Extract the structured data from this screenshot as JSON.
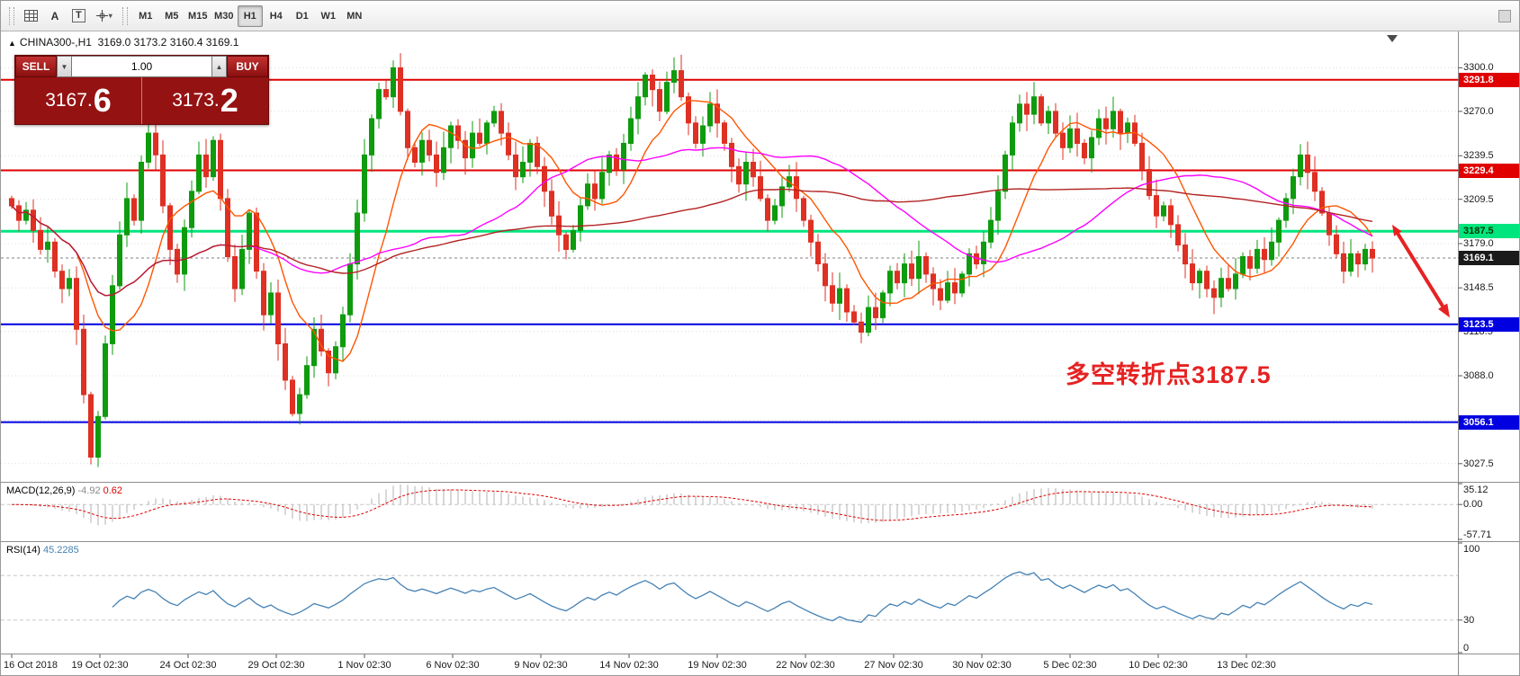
{
  "toolbar": {
    "icons": {
      "a": "A",
      "t": "T"
    },
    "timeframes": [
      "M1",
      "M5",
      "M15",
      "M30",
      "H1",
      "H4",
      "D1",
      "W1",
      "MN"
    ],
    "active_timeframe": "H1"
  },
  "chart": {
    "marker": "▲",
    "header": "CHINA300-,H1  3169.0 3173.2 3160.4 3169.1"
  },
  "trade_panel": {
    "sell_label": "SELL",
    "buy_label": "BUY",
    "volume": "1.00",
    "sell_price": "3167.",
    "sell_price_big": "6",
    "buy_price": "3173.",
    "buy_price_big": "2"
  },
  "annotation": {
    "text": "多空转折点3187.5"
  },
  "price_axis": {
    "labels": [
      3300.0,
      3270.0,
      3239.5,
      3209.5,
      3179.0,
      3148.5,
      3118.5,
      3088.0,
      3057.5,
      3027.5
    ],
    "tags": [
      {
        "value": 3291.8,
        "label": "3291.8",
        "color": "#e00000",
        "text": "#ffffff"
      },
      {
        "value": 3229.4,
        "label": "3229.4",
        "color": "#e00000",
        "text": "#ffffff"
      },
      {
        "value": 3187.5,
        "label": "3187.5",
        "color": "#00e57e",
        "text": "#003300"
      },
      {
        "value": 3169.1,
        "label": "3169.1",
        "color": "#1a1a1a",
        "text": "#ffffff"
      },
      {
        "value": 3123.5,
        "label": "3123.5",
        "color": "#0000e0",
        "text": "#ffffff"
      },
      {
        "value": 3056.1,
        "label": "3056.1",
        "color": "#0000e0",
        "text": "#ffffff"
      }
    ]
  },
  "hlines": [
    {
      "value": 3291.8,
      "color": "#e00000",
      "width": 2
    },
    {
      "value": 3229.4,
      "color": "#e00000",
      "width": 2
    },
    {
      "value": 3187.5,
      "color": "#00e57e",
      "width": 3
    },
    {
      "value": 3123.5,
      "color": "#0000e0",
      "width": 2
    },
    {
      "value": 3056.1,
      "color": "#0000e0",
      "width": 2
    }
  ],
  "macd_panel": {
    "label": "MACD(12,26,9)",
    "value_main": "-4.92",
    "value_signal": "0.62",
    "axis": [
      {
        "v": 35.12,
        "t": "35.12"
      },
      {
        "v": 0,
        "t": "0.00"
      },
      {
        "v": -57.71,
        "t": "-57.71"
      }
    ]
  },
  "rsi_panel": {
    "label": "RSI(14)",
    "value": "45.2285",
    "axis": [
      {
        "v": 100,
        "t": "100"
      },
      {
        "v": 30,
        "t": "30"
      },
      {
        "v": 0,
        "t": "0"
      }
    ]
  },
  "time_axis": [
    "16 Oct 2018",
    "19 Oct 02:30",
    "24 Oct 02:30",
    "29 Oct 02:30",
    "1 Nov 02:30",
    "6 Nov 02:30",
    "9 Nov 02:30",
    "14 Nov 02:30",
    "19 Nov 02:30",
    "22 Nov 02:30",
    "27 Nov 02:30",
    "30 Nov 02:30",
    "5 Dec 02:30",
    "10 Dec 02:30",
    "13 Dec 02:30"
  ],
  "chart_data": {
    "type": "candlestick",
    "symbol": "CHINA300-",
    "timeframe": "H1",
    "ohlc_display": [
      3169.0,
      3173.2,
      3160.4,
      3169.1
    ],
    "current_price": 3169.1,
    "price_range": [
      3015,
      3325
    ],
    "first_open": 3210,
    "closes": [
      3205,
      3195,
      3202,
      3188,
      3175,
      3180,
      3160,
      3148,
      3155,
      3120,
      3075,
      3032,
      3060,
      3110,
      3150,
      3185,
      3210,
      3195,
      3235,
      3255,
      3240,
      3205,
      3175,
      3158,
      3190,
      3215,
      3240,
      3225,
      3250,
      3210,
      3170,
      3148,
      3175,
      3200,
      3160,
      3130,
      3145,
      3110,
      3085,
      3062,
      3075,
      3095,
      3120,
      3105,
      3090,
      3108,
      3130,
      3165,
      3200,
      3240,
      3265,
      3285,
      3280,
      3300,
      3270,
      3245,
      3235,
      3250,
      3240,
      3228,
      3245,
      3260,
      3250,
      3238,
      3255,
      3248,
      3262,
      3270,
      3255,
      3240,
      3225,
      3235,
      3248,
      3232,
      3215,
      3198,
      3185,
      3175,
      3188,
      3205,
      3220,
      3210,
      3228,
      3240,
      3230,
      3248,
      3265,
      3280,
      3295,
      3285,
      3270,
      3290,
      3298,
      3280,
      3262,
      3248,
      3260,
      3275,
      3262,
      3248,
      3232,
      3220,
      3235,
      3225,
      3210,
      3195,
      3205,
      3218,
      3225,
      3210,
      3195,
      3180,
      3165,
      3150,
      3138,
      3148,
      3132,
      3125,
      3118,
      3135,
      3128,
      3145,
      3160,
      3152,
      3165,
      3155,
      3170,
      3158,
      3148,
      3140,
      3152,
      3145,
      3158,
      3172,
      3165,
      3180,
      3195,
      3215,
      3240,
      3262,
      3275,
      3268,
      3280,
      3262,
      3270,
      3255,
      3245,
      3258,
      3248,
      3238,
      3252,
      3265,
      3258,
      3270,
      3255,
      3262,
      3248,
      3230,
      3212,
      3198,
      3205,
      3192,
      3178,
      3165,
      3152,
      3160,
      3148,
      3142,
      3155,
      3148,
      3158,
      3170,
      3162,
      3175,
      3168,
      3180,
      3195,
      3210,
      3225,
      3240,
      3228,
      3215,
      3200,
      3185,
      3172,
      3160,
      3172,
      3165,
      3175,
      3169
    ],
    "wick_overrides": {
      "11": {
        "low": 3027
      },
      "53": {
        "high": 3305
      }
    },
    "up_color": "#0e9b0e",
    "down_color": "#de3023",
    "moving_averages": [
      {
        "period": 10,
        "color": "#ff5500"
      },
      {
        "period": 34,
        "color": "#ff00ff"
      },
      {
        "period": 90,
        "color": "#b22222"
      }
    ],
    "macd": {
      "fast": 12,
      "slow": 26,
      "signal": 9,
      "range": [
        -57.71,
        35.12
      ],
      "histogram_color": "#b0b0b0",
      "signal_color": "#e00000"
    },
    "rsi": {
      "period": 14,
      "range": [
        0,
        100
      ],
      "levels": [
        30,
        70
      ],
      "color": "#4682b4"
    },
    "time_labels": [
      "16 Oct 2018",
      "19 Oct 02:30",
      "24 Oct 02:30",
      "29 Oct 02:30",
      "1 Nov 02:30",
      "6 Nov 02:30",
      "9 Nov 02:30",
      "14 Nov 02:30",
      "19 Nov 02:30",
      "22 Nov 02:30",
      "27 Nov 02:30",
      "30 Nov 02:30",
      "5 Dec 02:30",
      "10 Dec 02:30",
      "13 Dec 02:30"
    ]
  }
}
